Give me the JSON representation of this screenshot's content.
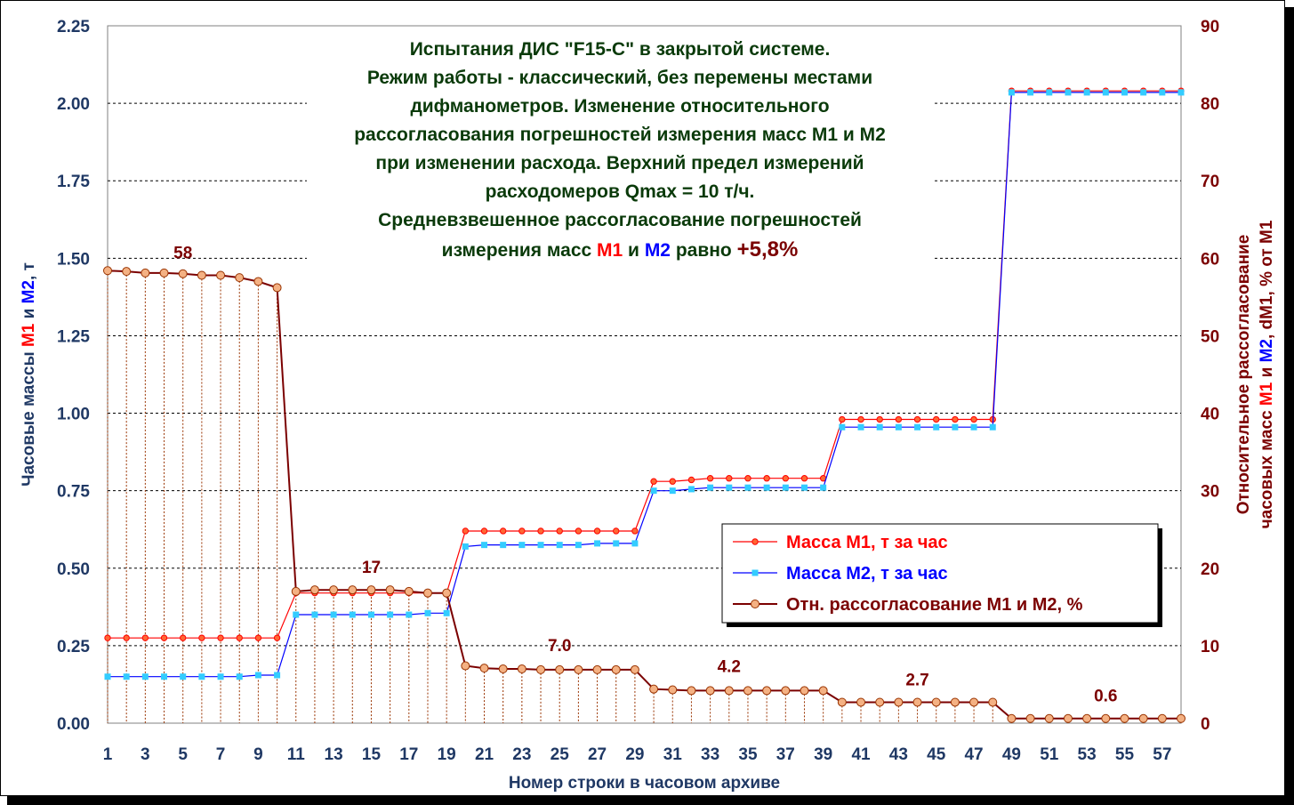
{
  "chart_data": {
    "type": "line",
    "title_lines": [
      "Испытания ДИС \"F15-C\" в закрытой системе.",
      "Режим работы - классический, без перемены местами",
      "дифманометров. Изменение относительного",
      "рассогласования погрешностей измерения масс М1 и М2",
      "при изменении расхода. Верхний предел измерений",
      "расходомеров Qmax = 10 т/ч.",
      "Средневзвешенное рассогласование погрешностей"
    ],
    "title_last": {
      "prefix": "измерения масс ",
      "m1": "М1",
      "and": " и ",
      "m2": "М2",
      "mid": " равно ",
      "value": "+5,8%"
    },
    "xlabel": "Номер строки в часовом архиве",
    "ylabel_left": {
      "prefix": "Часовые массы ",
      "m1": "М1",
      "and": " и ",
      "m2": "М2",
      "suffix": ", т"
    },
    "ylabel_right": {
      "line1": "Относительное рассогласование",
      "line2_prefix": "часовых масс ",
      "m1": "М1",
      "and": " и ",
      "m2": "М2",
      "line2_suffix": ", dM1, % от М1"
    },
    "x": [
      1,
      2,
      3,
      4,
      5,
      6,
      7,
      8,
      9,
      10,
      11,
      12,
      13,
      14,
      15,
      16,
      17,
      18,
      19,
      20,
      21,
      22,
      23,
      24,
      25,
      26,
      27,
      28,
      29,
      30,
      31,
      32,
      33,
      34,
      35,
      36,
      37,
      38,
      39,
      40,
      41,
      42,
      43,
      44,
      45,
      46,
      47,
      48,
      49,
      50,
      51,
      52,
      53,
      54,
      55,
      56,
      57,
      58
    ],
    "x_ticks": [
      1,
      3,
      5,
      7,
      9,
      11,
      13,
      15,
      17,
      19,
      21,
      23,
      25,
      27,
      29,
      31,
      33,
      35,
      37,
      39,
      41,
      43,
      45,
      47,
      49,
      51,
      53,
      55,
      57
    ],
    "xlim": [
      1,
      58
    ],
    "y_left_lim": [
      0,
      2.25
    ],
    "y_left_ticks": [
      "0.00",
      "0.25",
      "0.50",
      "0.75",
      "1.00",
      "1.25",
      "1.50",
      "1.75",
      "2.00",
      "2.25"
    ],
    "y_right_lim": [
      0,
      90
    ],
    "y_right_ticks": [
      "0",
      "10",
      "20",
      "30",
      "40",
      "50",
      "60",
      "70",
      "80",
      "90"
    ],
    "grid": true,
    "legend_position": "right-middle",
    "series": [
      {
        "name": "Масса М1, т за час",
        "axis": "left",
        "color": "#ff0000",
        "marker": "circle",
        "values": [
          0.275,
          0.275,
          0.275,
          0.275,
          0.275,
          0.275,
          0.275,
          0.275,
          0.275,
          0.275,
          0.42,
          0.42,
          0.42,
          0.42,
          0.42,
          0.42,
          0.42,
          0.42,
          0.42,
          0.62,
          0.62,
          0.62,
          0.62,
          0.62,
          0.62,
          0.62,
          0.62,
          0.62,
          0.62,
          0.78,
          0.78,
          0.785,
          0.79,
          0.79,
          0.79,
          0.79,
          0.79,
          0.79,
          0.79,
          0.98,
          0.98,
          0.98,
          0.98,
          0.98,
          0.98,
          0.98,
          0.98,
          0.98,
          2.04,
          2.04,
          2.04,
          2.04,
          2.04,
          2.04,
          2.04,
          2.04,
          2.04,
          2.04
        ]
      },
      {
        "name": "Масса М2, т за час",
        "axis": "left",
        "color": "#0000ff",
        "marker": "square",
        "marker_color": "#33ccff",
        "values": [
          0.15,
          0.15,
          0.15,
          0.15,
          0.15,
          0.15,
          0.15,
          0.15,
          0.155,
          0.155,
          0.35,
          0.35,
          0.35,
          0.35,
          0.35,
          0.35,
          0.35,
          0.355,
          0.355,
          0.57,
          0.575,
          0.575,
          0.575,
          0.575,
          0.575,
          0.575,
          0.58,
          0.58,
          0.58,
          0.75,
          0.75,
          0.755,
          0.76,
          0.76,
          0.76,
          0.76,
          0.76,
          0.76,
          0.76,
          0.955,
          0.955,
          0.955,
          0.955,
          0.955,
          0.955,
          0.955,
          0.955,
          0.955,
          2.035,
          2.035,
          2.035,
          2.035,
          2.035,
          2.035,
          2.035,
          2.035,
          2.035,
          2.035
        ]
      },
      {
        "name": "Отн. рассогласование М1 и М2, %",
        "axis": "right",
        "color": "#7b0000",
        "marker": "circle",
        "marker_color": "#f4b183",
        "values": [
          58.4,
          58.3,
          58.1,
          58.1,
          58.0,
          57.8,
          57.8,
          57.5,
          57.0,
          56.2,
          17.0,
          17.2,
          17.2,
          17.2,
          17.2,
          17.2,
          17.0,
          16.8,
          16.8,
          7.4,
          7.1,
          7.0,
          7.0,
          6.9,
          6.9,
          6.9,
          6.9,
          6.9,
          6.9,
          4.4,
          4.3,
          4.2,
          4.2,
          4.2,
          4.2,
          4.2,
          4.2,
          4.2,
          4.2,
          2.7,
          2.7,
          2.7,
          2.7,
          2.7,
          2.7,
          2.7,
          2.7,
          2.7,
          0.6,
          0.6,
          0.6,
          0.6,
          0.6,
          0.6,
          0.6,
          0.6,
          0.6,
          0.6
        ]
      }
    ],
    "annotations": [
      {
        "text": "58",
        "x": 5,
        "y": 60.0
      },
      {
        "text": "17",
        "x": 15,
        "y": 19.4
      },
      {
        "text": "7.0",
        "x": 25,
        "y": 9.3
      },
      {
        "text": "4.2",
        "x": 34,
        "y": 6.6
      },
      {
        "text": "2.7",
        "x": 44,
        "y": 4.9
      },
      {
        "text": "0.6",
        "x": 54,
        "y": 2.8
      }
    ]
  }
}
